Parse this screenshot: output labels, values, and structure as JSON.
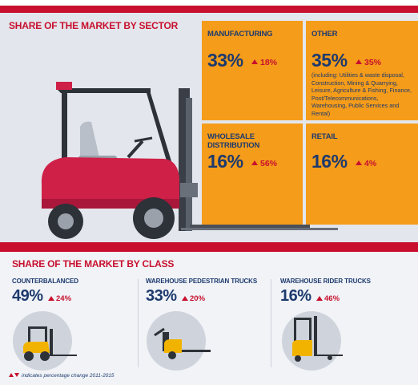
{
  "sector": {
    "heading": "SHARE OF THE MARKET BY SECTOR",
    "boxes": [
      {
        "title": "MANUFACTURING",
        "share": "33%",
        "change": "18%"
      },
      {
        "title": "OTHER",
        "share": "35%",
        "change": "35%",
        "note": "(including: Utilities & waste disposal, Construction, Mining & Quarrying, Leisure, Agriculture & Fishing, Finance, Post/Telecommunications, Warehousing, Public Services and Rental)"
      },
      {
        "title": "WHOLESALE DISTRIBUTION",
        "share": "16%",
        "change": "56%"
      },
      {
        "title": "RETAIL",
        "share": "16%",
        "change": "4%"
      }
    ]
  },
  "class": {
    "heading": "SHARE OF THE MARKET BY CLASS",
    "items": [
      {
        "title": "COUNTERBALANCED",
        "share": "49%",
        "change": "24%",
        "icon": "counterbalanced-forklift-icon"
      },
      {
        "title": "WAREHOUSE PEDESTRIAN TRUCKS",
        "share": "33%",
        "change": "20%",
        "icon": "pallet-truck-icon"
      },
      {
        "title": "WAREHOUSE RIDER TRUCKS",
        "share": "16%",
        "change": "46%",
        "icon": "reach-truck-icon"
      }
    ]
  },
  "footnote": "indicates percentage change 2011-2015",
  "colors": {
    "accent_red": "#c8102e",
    "box_orange": "#f59c1a",
    "text_navy": "#1d3a6e",
    "forklift_body": "#cf2047",
    "icon_yellow": "#f2b300"
  }
}
